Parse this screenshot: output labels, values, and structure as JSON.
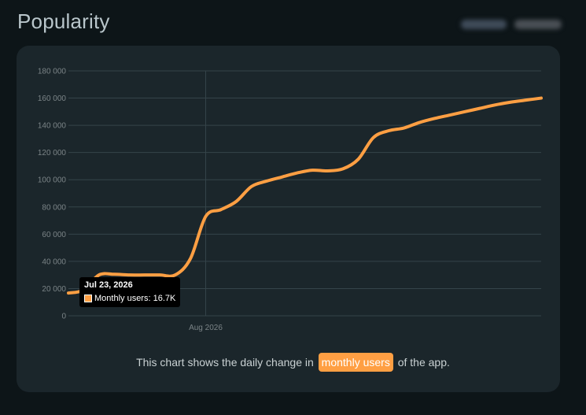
{
  "header": {
    "title": "Popularity"
  },
  "caption": {
    "before": "This chart shows the daily change in ",
    "highlight": "monthly users",
    "after": " of the app."
  },
  "tooltip": {
    "date": "Jul 23, 2026",
    "series_label": "Monthly users: 16.7K"
  },
  "colors": {
    "line": "#ff9f43",
    "card": "#1b262b",
    "background": "#0d1518"
  },
  "chart_data": {
    "type": "line",
    "title": "",
    "xlabel": "",
    "ylabel": "",
    "ylim": [
      0,
      180000
    ],
    "yticks": [
      0,
      20000,
      40000,
      60000,
      80000,
      100000,
      120000,
      140000,
      160000,
      180000
    ],
    "ytick_labels": [
      "0",
      "20 000",
      "40 000",
      "60 000",
      "80 000",
      "100 000",
      "120 000",
      "140 000",
      "160 000",
      "180 000"
    ],
    "xlim": [
      "2026-07-23",
      "2026-08-23"
    ],
    "xticks": [
      "2026-08-01"
    ],
    "xtick_labels": [
      "Aug 2026"
    ],
    "grid": true,
    "series": [
      {
        "x": [
          "2026-07-23",
          "2026-07-24",
          "2026-07-25",
          "2026-07-26",
          "2026-07-27",
          "2026-07-28",
          "2026-07-29",
          "2026-07-30",
          "2026-07-31",
          "2026-08-01",
          "2026-08-02",
          "2026-08-03",
          "2026-08-04",
          "2026-08-05",
          "2026-08-06",
          "2026-08-07",
          "2026-08-08",
          "2026-08-09",
          "2026-08-10",
          "2026-08-11",
          "2026-08-12",
          "2026-08-13",
          "2026-08-14",
          "2026-08-15",
          "2026-08-16",
          "2026-08-17",
          "2026-08-18",
          "2026-08-19",
          "2026-08-20",
          "2026-08-21",
          "2026-08-22",
          "2026-08-23"
        ],
        "values": [
          16700,
          19000,
          30000,
          30500,
          30000,
          30000,
          30000,
          30000,
          42000,
          73000,
          78000,
          84000,
          95000,
          99000,
          102000,
          105000,
          107000,
          106500,
          108000,
          115000,
          131000,
          136000,
          138000,
          142000,
          145000,
          147500,
          150000,
          152500,
          155000,
          157000,
          158500,
          160000
        ]
      }
    ]
  }
}
